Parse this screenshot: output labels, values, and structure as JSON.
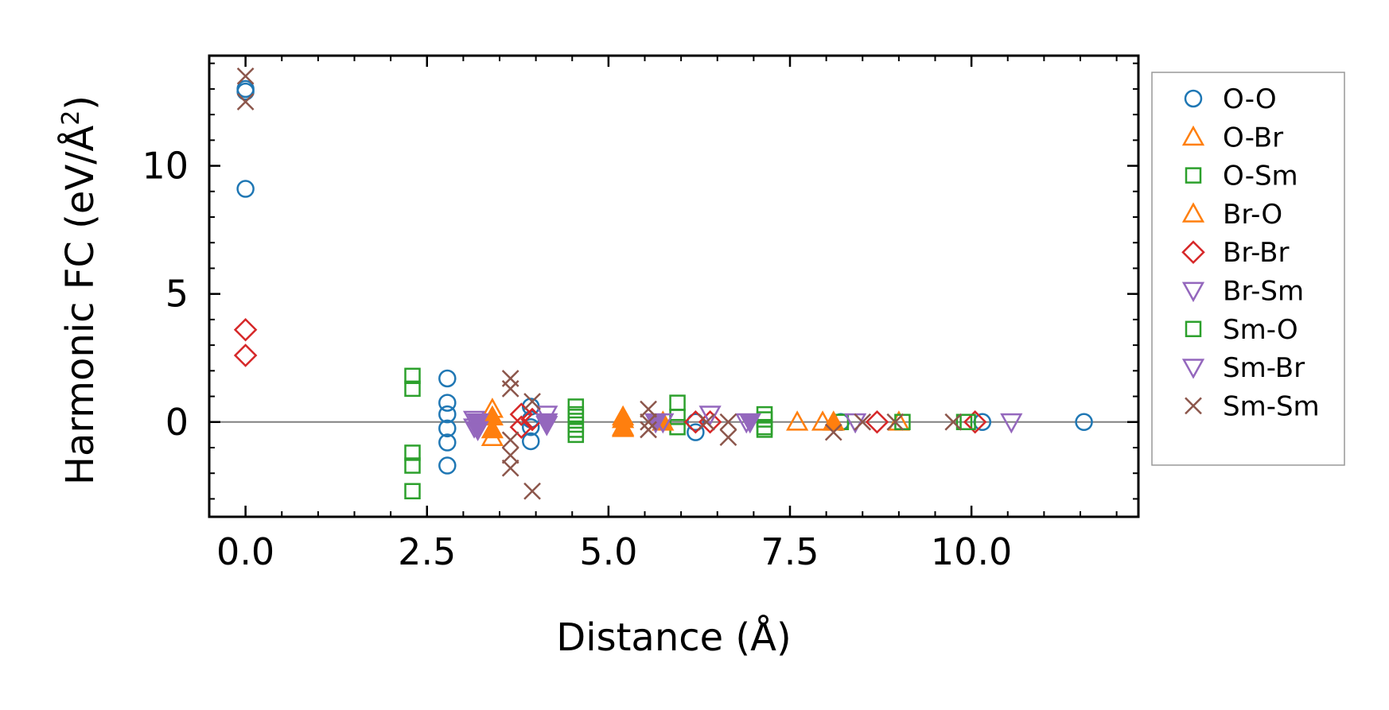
{
  "chart_data": {
    "type": "scatter",
    "title": "",
    "xlabel": "Distance (Å)",
    "ylabel_main": "Harmonic FC (eV/Å",
    "ylabel_sup": "2",
    "ylabel_close": ")",
    "xlim": [
      -0.5,
      12.3
    ],
    "ylim": [
      -3.7,
      14.3
    ],
    "xticks": [
      0.0,
      2.5,
      5.0,
      7.5,
      10.0
    ],
    "xtick_labels": [
      "0.0",
      "2.5",
      "5.0",
      "7.5",
      "10.0"
    ],
    "yticks": [
      0,
      5,
      10
    ],
    "ytick_labels": [
      "0",
      "5",
      "10"
    ],
    "x_minor_step": 0.5,
    "y_minor_step": 1,
    "zero_line": true,
    "legend_position": "outside-right",
    "series": [
      {
        "name": "O-O",
        "marker": "circle",
        "color": "#1f77b4",
        "points": [
          [
            0,
            13.0
          ],
          [
            0,
            12.9
          ],
          [
            0,
            9.1
          ],
          [
            2.78,
            1.7
          ],
          [
            2.78,
            0.75
          ],
          [
            2.78,
            0.3
          ],
          [
            2.78,
            -0.25
          ],
          [
            2.78,
            -0.8
          ],
          [
            2.78,
            -1.7
          ],
          [
            3.93,
            0.6
          ],
          [
            3.93,
            0.1
          ],
          [
            3.93,
            -0.2
          ],
          [
            3.93,
            -0.75
          ],
          [
            6.2,
            -0.4
          ],
          [
            6.2,
            0.0
          ],
          [
            8.2,
            0.0
          ],
          [
            10.15,
            0.0
          ],
          [
            11.55,
            0.0
          ]
        ]
      },
      {
        "name": "O-Br",
        "marker": "triangle-up",
        "color": "#ff7f0e",
        "points": [
          [
            3.4,
            0.5
          ],
          [
            3.4,
            -0.6
          ],
          [
            5.2,
            0.2
          ],
          [
            5.2,
            -0.2
          ],
          [
            7.6,
            0.0
          ],
          [
            7.95,
            0.0
          ],
          [
            9.0,
            0.0
          ]
        ]
      },
      {
        "name": "O-Sm",
        "marker": "square",
        "color": "#2ca02c",
        "points": [
          [
            2.3,
            1.8
          ],
          [
            2.3,
            1.3
          ],
          [
            2.3,
            -1.2
          ],
          [
            2.3,
            -1.7
          ],
          [
            2.3,
            -2.7
          ],
          [
            4.55,
            0.6
          ],
          [
            4.55,
            0.3
          ],
          [
            4.55,
            -0.1
          ],
          [
            4.55,
            -0.5
          ],
          [
            5.95,
            0.75
          ],
          [
            5.95,
            0.2
          ],
          [
            5.95,
            -0.2
          ],
          [
            7.15,
            0.3
          ],
          [
            7.15,
            -0.2
          ],
          [
            8.2,
            0.0
          ],
          [
            9.05,
            0.0
          ],
          [
            9.9,
            0.0
          ]
        ]
      },
      {
        "name": "Br-O",
        "marker": "triangle-up-filled",
        "color": "#ff7f0e",
        "points": [
          [
            3.4,
            0.2
          ],
          [
            3.4,
            -0.3
          ],
          [
            5.2,
            0.1
          ],
          [
            5.2,
            -0.25
          ],
          [
            5.75,
            0.0
          ],
          [
            8.1,
            0.0
          ]
        ]
      },
      {
        "name": "Br-Br",
        "marker": "diamond",
        "color": "#d62728",
        "points": [
          [
            0,
            3.6
          ],
          [
            0,
            2.6
          ],
          [
            3.8,
            0.3
          ],
          [
            3.8,
            -0.2
          ],
          [
            3.95,
            0.1
          ],
          [
            6.2,
            0.0
          ],
          [
            6.4,
            0.0
          ],
          [
            8.7,
            0.0
          ],
          [
            10.05,
            0.0
          ]
        ]
      },
      {
        "name": "Br-Sm",
        "marker": "triangle-down",
        "color": "#9467bd",
        "points": [
          [
            3.15,
            0.1
          ],
          [
            3.15,
            -0.2
          ],
          [
            4.15,
            0.3
          ],
          [
            4.15,
            -0.1
          ],
          [
            5.75,
            0.0
          ],
          [
            6.4,
            0.3
          ],
          [
            6.9,
            0.0
          ],
          [
            8.4,
            0.0
          ],
          [
            10.55,
            0.0
          ]
        ]
      },
      {
        "name": "Sm-O",
        "marker": "square",
        "color": "#2ca02c",
        "points": [
          [
            4.55,
            0.2
          ],
          [
            4.55,
            -0.3
          ],
          [
            7.15,
            0.1
          ],
          [
            7.15,
            -0.3
          ],
          [
            9.95,
            0.0
          ]
        ]
      },
      {
        "name": "Sm-Br",
        "marker": "triangle-down-filled",
        "color": "#9467bd",
        "points": [
          [
            3.2,
            0.0
          ],
          [
            3.2,
            -0.3
          ],
          [
            4.15,
            0.0
          ],
          [
            5.65,
            0.0
          ],
          [
            6.95,
            0.0
          ]
        ]
      },
      {
        "name": "Sm-Sm",
        "marker": "x",
        "color": "#8c564b",
        "points": [
          [
            0,
            13.5
          ],
          [
            0,
            12.5
          ],
          [
            3.65,
            1.7
          ],
          [
            3.65,
            1.3
          ],
          [
            3.65,
            -0.7
          ],
          [
            3.65,
            -1.3
          ],
          [
            3.65,
            -1.8
          ],
          [
            3.95,
            0.8
          ],
          [
            3.95,
            -2.7
          ],
          [
            5.55,
            0.5
          ],
          [
            5.55,
            0.0
          ],
          [
            5.55,
            -0.3
          ],
          [
            6.35,
            0.0
          ],
          [
            6.65,
            -0.6
          ],
          [
            6.65,
            0.0
          ],
          [
            8.1,
            -0.4
          ],
          [
            8.5,
            0.0
          ],
          [
            8.95,
            0.0
          ],
          [
            9.75,
            0.0
          ]
        ]
      }
    ]
  }
}
